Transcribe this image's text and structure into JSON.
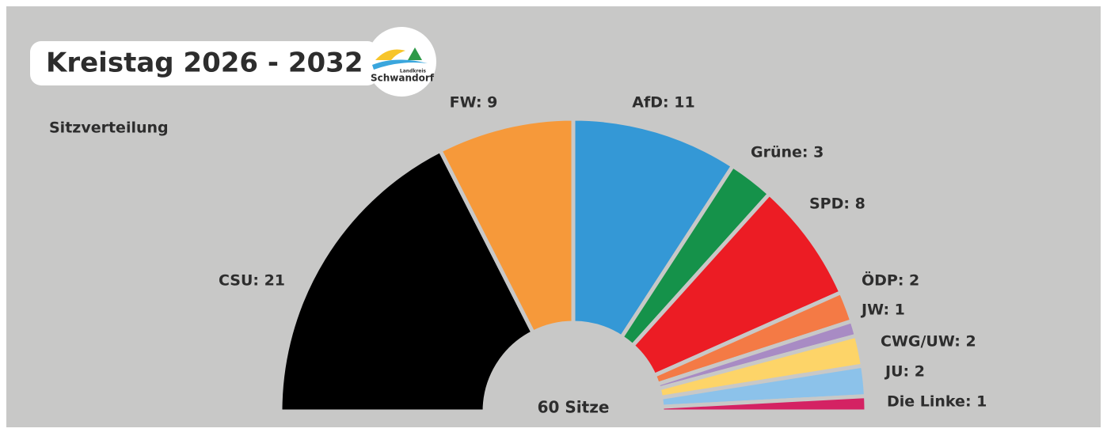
{
  "chart_data": {
    "type": "semicircle",
    "title": "Kreistag 2026 - 2032",
    "subtitle": "Sitzverteilung",
    "logo": {
      "small": "Landkreis",
      "name": "Schwandorf"
    },
    "center_label": "60 Sitze",
    "values": [
      21,
      9,
      11,
      3,
      8,
      2,
      1,
      2,
      2,
      1
    ],
    "value_labels": [
      "CSU: 21",
      "FW: 9",
      "AfD: 11",
      "Grüne: 3",
      "SPD: 8",
      "ÖDP: 2",
      "JW: 1",
      "CWG/UW: 2",
      "JU: 2",
      "Die Linke: 1"
    ],
    "colors": [
      "#000000",
      "#f6993a",
      "#3498d6",
      "#15924a",
      "#ec1c24",
      "#f47a45",
      "#a88bc4",
      "#fdd468",
      "#8cc2ea",
      "#d42263"
    ]
  }
}
